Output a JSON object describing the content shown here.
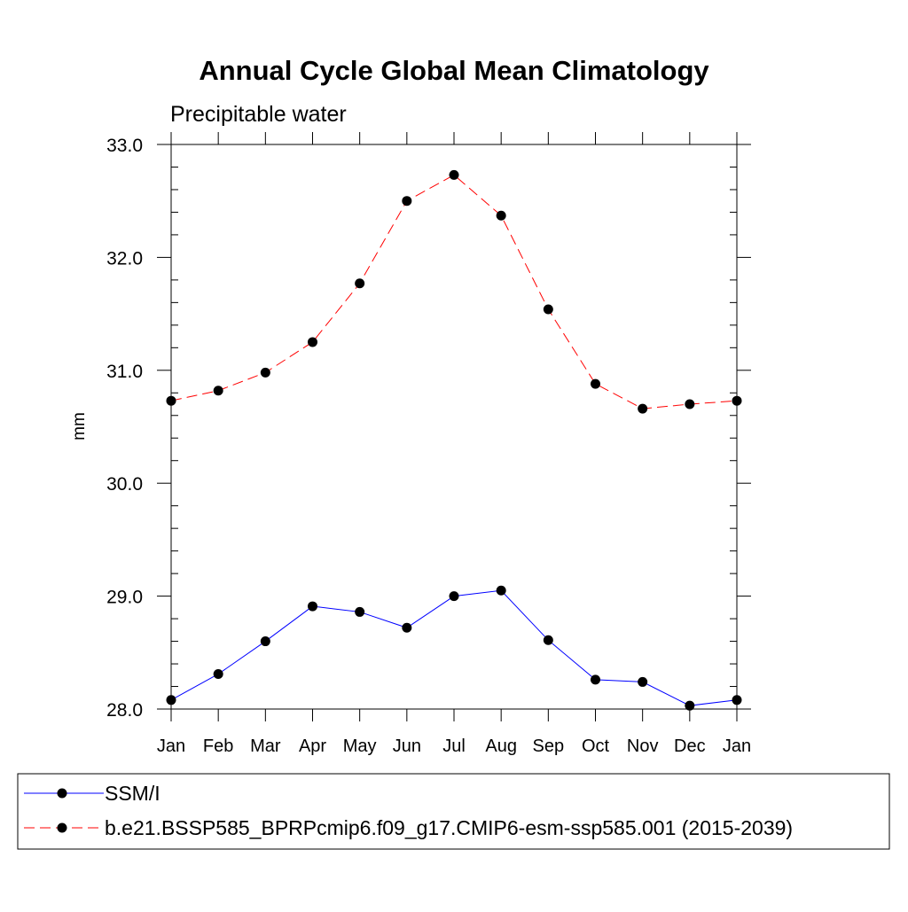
{
  "chart_data": {
    "type": "line",
    "title": "Annual Cycle Global Mean Climatology",
    "subtitle": "Precipitable water",
    "xlabel": "",
    "ylabel": "mm",
    "categories": [
      "Jan",
      "Feb",
      "Mar",
      "Apr",
      "May",
      "Jun",
      "Jul",
      "Aug",
      "Sep",
      "Oct",
      "Nov",
      "Dec",
      "Jan"
    ],
    "ylim": [
      28.0,
      33.0
    ],
    "yticks": [
      "28.0",
      "29.0",
      "30.0",
      "31.0",
      "32.0",
      "33.0"
    ],
    "grid": false,
    "legend_position": "bottom",
    "series": [
      {
        "name": "SSM/I",
        "color": "#0000ff",
        "line_style": "solid",
        "marker": "filled-circle",
        "values": [
          28.08,
          28.31,
          28.6,
          28.91,
          28.86,
          28.72,
          29.0,
          29.05,
          28.61,
          28.26,
          28.24,
          28.03,
          28.08
        ]
      },
      {
        "name": "b.e21.BSSP585_BPRPcmip6.f09_g17.CMIP6-esm-ssp585.001 (2015-2039)",
        "color": "#ff0000",
        "line_style": "dashed",
        "marker": "filled-circle",
        "values": [
          30.73,
          30.82,
          30.98,
          31.25,
          31.77,
          32.5,
          32.73,
          32.37,
          31.54,
          30.88,
          30.66,
          30.7,
          30.73
        ]
      }
    ]
  }
}
